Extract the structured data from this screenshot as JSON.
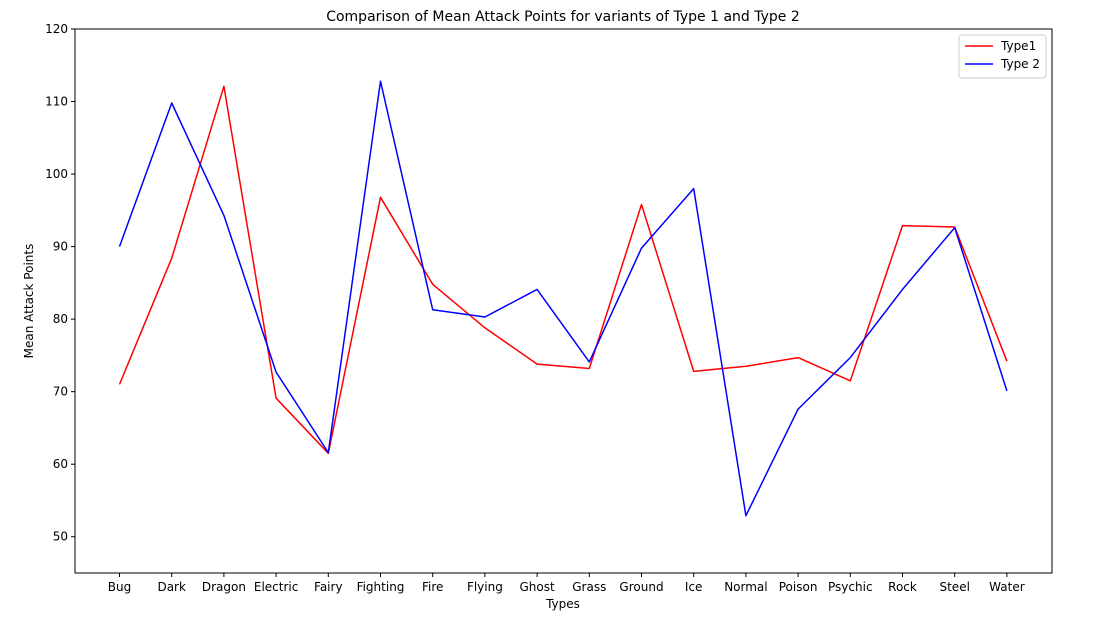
{
  "chart_data": {
    "type": "line",
    "title": "Comparison of Mean Attack Points for variants of Type 1 and Type 2",
    "xlabel": "Types",
    "ylabel": "Mean Attack Points",
    "ylim": [
      45,
      120
    ],
    "yticks": [
      50,
      60,
      70,
      80,
      90,
      100,
      110,
      120
    ],
    "grid": false,
    "legend_position": "top-right",
    "categories": [
      "Bug",
      "Dark",
      "Dragon",
      "Electric",
      "Fairy",
      "Fighting",
      "Fire",
      "Flying",
      "Ghost",
      "Grass",
      "Ground",
      "Ice",
      "Normal",
      "Poison",
      "Psychic",
      "Rock",
      "Steel",
      "Water"
    ],
    "series": [
      {
        "name": "Type1",
        "color": "#ff0000",
        "values": [
          71.0,
          88.4,
          112.1,
          69.1,
          61.5,
          96.8,
          84.8,
          78.8,
          73.8,
          73.2,
          95.8,
          72.8,
          73.5,
          74.7,
          71.5,
          92.9,
          92.7,
          74.2
        ]
      },
      {
        "name": "Type 2",
        "color": "#0000ff",
        "values": [
          90.0,
          109.8,
          94.3,
          72.7,
          61.6,
          112.8,
          81.3,
          80.3,
          84.1,
          74.1,
          89.8,
          98.0,
          52.9,
          67.6,
          74.7,
          84.1,
          92.6,
          70.1
        ]
      }
    ]
  }
}
